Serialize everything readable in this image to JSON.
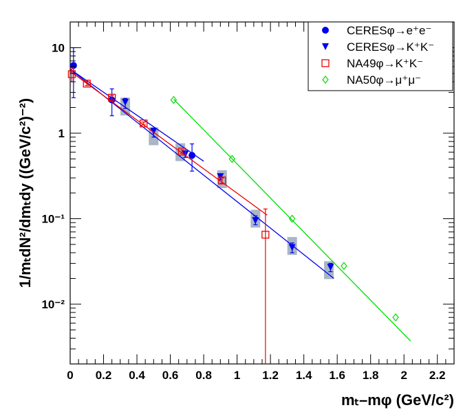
{
  "chart_data": {
    "type": "scatter",
    "xlabel": "mₜ–mφ (GeV/c²)",
    "ylabel": "1/mₜdN²/dmₜdy ((GeV/c²)⁻²)",
    "xlim": [
      0,
      2.3
    ],
    "ylim": [
      0.002,
      20
    ],
    "yscale": "log",
    "x_ticks": [
      "0",
      "0.2",
      "0.4",
      "0.6",
      "0.8",
      "1",
      "1.2",
      "1.4",
      "1.6",
      "1.8",
      "2",
      "2.2"
    ],
    "y_ticks": [
      "10",
      "1",
      "10⁻¹",
      "10⁻²"
    ],
    "legend_position": "top-right",
    "series": [
      {
        "name": "CERESφ→e⁺e⁻",
        "color": "#0000ee",
        "marker": "circle",
        "points": [
          {
            "x": 0.02,
            "y": 6.2,
            "ylo": 2.6,
            "yhi": 10.0
          },
          {
            "x": 0.25,
            "y": 2.45,
            "ylo": 1.6,
            "yhi": 3.3
          },
          {
            "x": 0.73,
            "y": 0.55,
            "ylo": 0.36,
            "yhi": 0.75
          }
        ],
        "fit": {
          "x0": 0.0,
          "y0": 5.6,
          "x1": 0.8,
          "y1": 0.47
        }
      },
      {
        "name": "CERESφ→K⁺K⁻",
        "color": "#0000ee",
        "marker": "triangle-down",
        "points": [
          {
            "x": 0.33,
            "y": 2.3,
            "ylo": 1.95,
            "yhi": 2.55
          },
          {
            "x": 0.5,
            "y": 1.05,
            "ylo": 0.9,
            "yhi": 1.15
          },
          {
            "x": 0.69,
            "y": 0.57,
            "ylo": 0.52,
            "yhi": 0.62
          },
          {
            "x": 0.9,
            "y": 0.31,
            "ylo": 0.285,
            "yhi": 0.33
          },
          {
            "x": 1.11,
            "y": 0.095,
            "ylo": 0.085,
            "yhi": 0.108
          },
          {
            "x": 1.33,
            "y": 0.046,
            "ylo": 0.04,
            "yhi": 0.052
          },
          {
            "x": 1.56,
            "y": 0.027,
            "ylo": 0.024,
            "yhi": 0.03
          }
        ],
        "fit": {
          "x0": 0.0,
          "y0": 5.6,
          "x1": 1.58,
          "y1": 0.02
        }
      },
      {
        "name": "NA49φ→K⁺K⁻",
        "color": "#ee0000",
        "marker": "open-square",
        "points": [
          {
            "x": 0.01,
            "y": 4.9,
            "ylo": 4.0,
            "yhi": 5.8
          },
          {
            "x": 0.1,
            "y": 3.8,
            "ylo": 3.6,
            "yhi": 4.0
          },
          {
            "x": 0.25,
            "y": 2.6,
            "ylo": 2.45,
            "yhi": 2.75
          },
          {
            "x": 0.44,
            "y": 1.3,
            "ylo": 1.25,
            "yhi": 1.35
          },
          {
            "x": 0.67,
            "y": 0.61,
            "ylo": 0.58,
            "yhi": 0.64
          },
          {
            "x": 0.91,
            "y": 0.28,
            "ylo": 0.26,
            "yhi": 0.3
          },
          {
            "x": 1.17,
            "y": 0.065,
            "ylo": 0.002,
            "yhi": 0.13
          }
        ],
        "fit": {
          "x0": 0.0,
          "y0": 5.3,
          "x1": 1.18,
          "y1": 0.11
        }
      },
      {
        "name": "NA50φ→μ⁺μ⁻",
        "color": "#00dd00",
        "marker": "open-diamond",
        "points": [
          {
            "x": 0.62,
            "y": 2.45
          },
          {
            "x": 0.97,
            "y": 0.5
          },
          {
            "x": 1.33,
            "y": 0.1
          },
          {
            "x": 1.64,
            "y": 0.028
          },
          {
            "x": 1.95,
            "y": 0.007
          }
        ],
        "fit": {
          "x0": 0.62,
          "y0": 2.5,
          "x1": 2.04,
          "y1": 0.0037
        }
      }
    ],
    "systematic_boxes": [
      {
        "x": 0.33,
        "y": 2.05
      },
      {
        "x": 0.5,
        "y": 0.92
      },
      {
        "x": 0.66,
        "y": 0.6
      },
      {
        "x": 0.91,
        "y": 0.29
      },
      {
        "x": 1.11,
        "y": 0.1
      },
      {
        "x": 1.33,
        "y": 0.048
      },
      {
        "x": 1.55,
        "y": 0.025
      }
    ]
  }
}
